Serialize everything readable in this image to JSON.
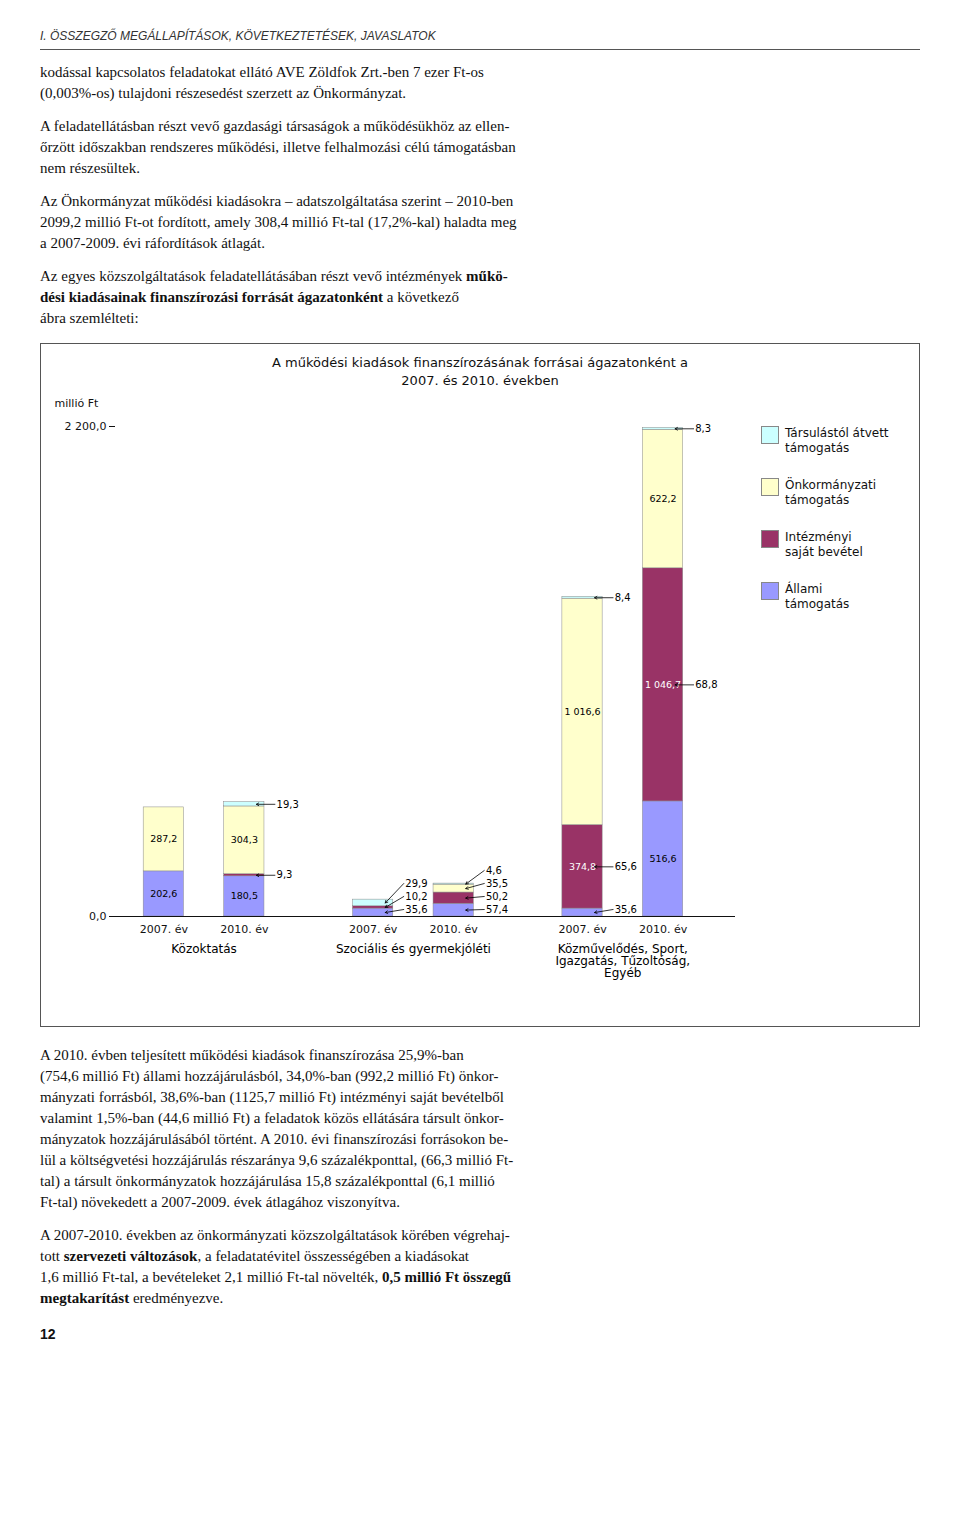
{
  "chart_data": {
    "type": "bar",
    "stacked": true,
    "title": "A működési kiadások finanszírozásának forrásai ágazatonként a\n2007. és 2010. években",
    "ylabel": "millió Ft",
    "categories": [
      "2007. év",
      "2010. év",
      "2007. év",
      "2010. év",
      "2007. év",
      "2010. év"
    ],
    "groups": [
      "Közoktatás",
      "Közoktatás",
      "Szociális és gyermekjóléti",
      "Szociális és gyermekjóléti",
      "Közművelődés, Sport,\nIgazgatás, Tűzoltóság,\nEgyéb",
      "Közművelődés, Sport,\nIgazgatás, Tűzoltóság,\nEgyéb"
    ],
    "series": [
      {
        "name": "Állami\ntámogatás",
        "color": "#9999FF",
        "values": [
          202.6,
          180.5,
          35.6,
          57.4,
          35.6,
          516.6
        ],
        "value_labels": [
          "202,6",
          "180,5",
          "35,6",
          "57,4",
          "35,6",
          "516,6"
        ]
      },
      {
        "name": "Intézményi\nsaját bevétel",
        "color": "#993366",
        "values": [
          0.0,
          9.3,
          10.2,
          50.2,
          374.8,
          1046.7
        ],
        "value_labels": [
          null,
          "9,3",
          "10,2",
          "50,2",
          "374,8",
          "1 046,7"
        ]
      },
      {
        "name": "Önkormányzati\ntámogatás",
        "color": "#FFFFCC",
        "values": [
          287.2,
          304.3,
          0.0,
          35.5,
          1016.6,
          622.2
        ],
        "value_labels": [
          "287,2",
          "304,3",
          null,
          "35,5",
          "1 016,6",
          "622,2"
        ]
      },
      {
        "name": "Társulástól átvett\ntámogatás",
        "color": "#CCFFFF",
        "values": [
          0.0,
          19.3,
          29.9,
          4.6,
          8.4,
          8.3
        ],
        "value_labels": [
          null,
          "19,3",
          "29,9",
          "4,6",
          "8,4",
          "8,3"
        ]
      }
    ],
    "ylim": [
      0,
      2200
    ],
    "yticks": [
      {
        "value": 0,
        "label": "0,0"
      },
      {
        "value": 2200,
        "label": "2 200,0"
      }
    ],
    "grid": false,
    "legend": "right",
    "data_labels": true,
    "annotations": [
      {
        "text": "65,6",
        "category": 4,
        "series": "Intézményi\nsaját bevétel"
      },
      {
        "text": "68,8",
        "category": 5,
        "series": "Intézményi\nsaját bevétel"
      }
    ]
  },
  "page_texts": {
    "header": "I. ÖSSZEGZŐ MEGÁLLAPÍTÁSOK, KÖVETKEZTETÉSEK, JAVASLATOK",
    "paragraphs_before": [
      [
        {
          "text": "kodással kapcsolatos feladatokat ellátó AVE Zöldfok Zrt.-ben 7 ezer Ft-os\n(0,003%-os) tulajdoni részesedést szerzett az Önkormányzat.",
          "bold": false
        }
      ],
      [
        {
          "text": "A feladatellátásban részt vevő gazdasági társaságok a működésükhöz az ellen-\nőrzött időszakban rendszeres működési, illetve felhalmozási célú támogatásban\nnem részesültek.",
          "bold": false
        }
      ],
      [
        {
          "text": "Az Önkormányzat működési kiadásokra – adatszolgáltatása szerint – 2010-ben\n2099,2 millió Ft-ot fordított, amely 308,4 millió Ft-tal (17,2%-kal) haladta meg\na 2007-2009. évi ráfordítások átlagát.",
          "bold": false
        }
      ],
      [
        {
          "text": "Az egyes közszolgáltatások feladatellátásában részt vevő intézmények ",
          "bold": false
        },
        {
          "text": "műkö-\ndési kiadásainak finanszírozási forrását ágazatonként",
          "bold": true
        },
        {
          "text": " a következő\nábra szemlélteti:",
          "bold": false
        }
      ]
    ],
    "paragraphs_after": [
      [
        {
          "text": "A 2010. évben teljesített működési kiadások finanszírozása 25,9%-ban\n(754,6 millió Ft) állami hozzájárulásból, 34,0%-ban (992,2 millió Ft) önkor-\nmányzati forrásból, 38,6%-ban (1125,7 millió Ft) intézményi saját bevételből\nvalamint 1,5%-ban (44,6 millió Ft) a feladatok közös ellátására társult önkor-\nmányzatok hozzájárulásából történt. A 2010. évi finanszírozási forrásokon be-\nlül a költségvetési hozzájárulás részaránya 9,6 százalékponttal, (66,3 millió Ft-\ntal) a társult önkormányzatok hozzájárulása 15,8 százalékponttal (6,1 millió\nFt-tal) növekedett a 2007-2009. évek átlagához viszonyítva.",
          "bold": false
        }
      ],
      [
        {
          "text": "A 2007-2010. években az önkormányzati közszolgáltatások körében végrehaj-\ntott ",
          "bold": false
        },
        {
          "text": "szervezeti változások",
          "bold": true
        },
        {
          "text": ", a feladatatévitel összességében a kiadásokat\n1,6 millió Ft-tal, a bevételeket 2,1 millió Ft-tal növelték, ",
          "bold": false
        },
        {
          "text": "0,5 millió Ft összegű\nmegtakarítást",
          "bold": true
        },
        {
          "text": " eredményezve.",
          "bold": false
        }
      ]
    ],
    "page_number": "12"
  }
}
